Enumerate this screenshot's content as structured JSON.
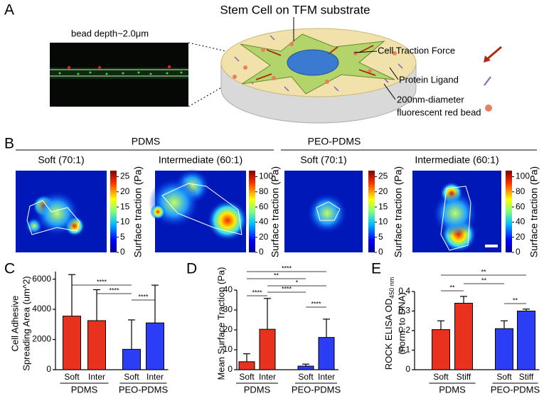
{
  "panel_a": {
    "label": "A",
    "title": "Stem Cell on TFM substrate",
    "image_caption": "bead depth~2.0μm",
    "legend": [
      "Cell Traction Force",
      "Protein Ligand",
      "200nm-diameter",
      "fluorescent red bead"
    ]
  },
  "panel_b": {
    "label": "B",
    "groups": [
      {
        "name": "PDMS",
        "color": "#d62d1e"
      },
      {
        "name": "PEO-PDMS",
        "color": "#3a6fc4"
      }
    ],
    "colorbar_label": "Surface traction (Pa)",
    "maps": [
      {
        "title": "Soft (70:1)",
        "clim": [
          0,
          27
        ],
        "ticks": [
          0,
          5,
          10,
          15,
          20,
          25
        ]
      },
      {
        "title": "Intermediate (60:1)",
        "clim": [
          0,
          108
        ],
        "ticks": [
          0,
          20,
          40,
          60,
          80,
          100
        ]
      },
      {
        "title": "Soft (70:1)",
        "clim": [
          0,
          27
        ],
        "ticks": [
          0,
          5,
          10,
          15,
          20,
          25
        ]
      },
      {
        "title": "Intermediate (60:1)",
        "clim": [
          0,
          108
        ],
        "ticks": [
          0,
          20,
          40,
          60,
          80,
          100
        ]
      }
    ]
  },
  "chart_data": [
    {
      "type": "bar",
      "label": "C",
      "y_label": [
        "Cell Adhesive",
        "Spreading Area (um^2)"
      ],
      "categories": [
        "Soft",
        "Inter",
        "Soft",
        "Inter"
      ],
      "groups": [
        "PDMS",
        "PEO-PDMS"
      ],
      "values": [
        3550,
        3250,
        1350,
        3100
      ],
      "errors": [
        2750,
        2050,
        1950,
        2500
      ],
      "colors": [
        "#e8321e",
        "#e8321e",
        "#2b3df5",
        "#2b3df5"
      ],
      "group_colors": [
        "#e8321e",
        "#2b3df5"
      ],
      "ylim": [
        0,
        6500
      ],
      "yticks": [
        0,
        2000,
        4000,
        6000
      ],
      "significance": [
        "****",
        "****",
        "****"
      ]
    },
    {
      "type": "bar",
      "label": "D",
      "y_label": [
        "Mean Surface Traction (Pa)"
      ],
      "categories": [
        "Soft",
        "Inter",
        "Soft",
        "Inter"
      ],
      "groups": [
        "PDMS",
        "PEO-PDMS"
      ],
      "values": [
        4,
        20.3,
        1.8,
        16.2
      ],
      "errors": [
        4,
        15.5,
        1,
        9.2
      ],
      "colors": [
        "#e8321e",
        "#e8321e",
        "#2b3df5",
        "#2b3df5"
      ],
      "group_colors": [
        "#e8321e",
        "#2b3df5"
      ],
      "ylim": [
        0,
        40
      ],
      "yticks": [
        0,
        10,
        20,
        30,
        40
      ],
      "significance": [
        "****",
        "**",
        "*",
        "****",
        "****",
        "****"
      ]
    },
    {
      "type": "bar",
      "label": "E",
      "y_label": [
        "ROCK ELISA OD",
        "450 nm",
        "(norm. to DNA)"
      ],
      "categories": [
        "Soft",
        "Stiff",
        "Soft",
        "Stiff"
      ],
      "groups": [
        "PDMS",
        "PEO-PDMS"
      ],
      "values": [
        0.205,
        0.34,
        0.21,
        0.3
      ],
      "errors": [
        0.045,
        0.035,
        0.04,
        0.01
      ],
      "colors": [
        "#e8321e",
        "#e8321e",
        "#2b3df5",
        "#2b3df5"
      ],
      "group_colors": [
        "#e8321e",
        "#2b3df5"
      ],
      "ylim": [
        0,
        0.4
      ],
      "yticks": [
        0,
        0.1,
        0.2,
        0.3,
        0.4
      ],
      "significance": [
        "**",
        "**",
        "**",
        "**"
      ]
    }
  ]
}
